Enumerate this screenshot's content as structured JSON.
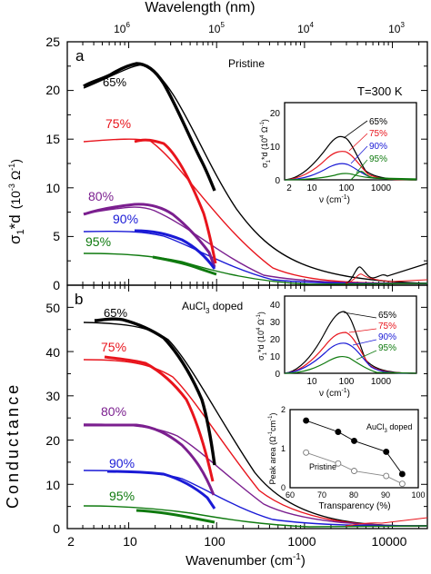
{
  "chart_data": [
    {
      "panel": "a",
      "type": "line",
      "label": "a",
      "annotation": "Pristine",
      "temperature": "T=300 K",
      "ylim": [
        0,
        25
      ],
      "xscale": "log",
      "xlim": [
        2,
        25000
      ],
      "yticks": [
        0,
        5,
        10,
        15,
        20,
        25
      ],
      "top_axis": {
        "label": "Wavelength (nm)",
        "ticks": [
          "10^6",
          "10^5",
          "10^4",
          "10^3"
        ]
      },
      "series": [
        {
          "name": "65%",
          "color": "#000000",
          "dc_conductivity": 21.5,
          "data_points": [
            [
              3,
              21.2
            ],
            [
              4,
              21.8
            ],
            [
              6,
              22.1
            ],
            [
              8,
              22.5
            ],
            [
              10,
              22.3
            ],
            [
              15,
              21.8
            ],
            [
              20,
              20.8
            ],
            [
              30,
              17.5
            ],
            [
              50,
              12.5
            ],
            [
              70,
              9.8
            ],
            [
              90,
              7.5
            ]
          ]
        },
        {
          "name": "75%",
          "color": "#e8141c",
          "dc_conductivity": 14.6,
          "data_points": [
            [
              8,
              14.8
            ],
            [
              10,
              14.9
            ],
            [
              15,
              14.4
            ],
            [
              20,
              13.6
            ],
            [
              30,
              11.5
            ],
            [
              50,
              8.0
            ],
            [
              70,
              5.5
            ],
            [
              90,
              3.2
            ]
          ]
        },
        {
          "name": "80%",
          "color": "#7b1f8f",
          "dc_conductivity": 7.3,
          "data_points": [
            [
              3,
              7.3
            ],
            [
              5,
              7.7
            ],
            [
              8,
              8.0
            ],
            [
              10,
              8.1
            ],
            [
              15,
              8.0
            ],
            [
              20,
              7.6
            ],
            [
              30,
              6.5
            ],
            [
              50,
              4.5
            ],
            [
              70,
              3.2
            ],
            [
              90,
              2.5
            ]
          ]
        },
        {
          "name": "90%",
          "color": "#1a1ad6",
          "dc_conductivity": 5.5,
          "data_points": [
            [
              8,
              5.5
            ],
            [
              10,
              5.5
            ],
            [
              20,
              5.2
            ],
            [
              30,
              4.6
            ],
            [
              50,
              3.4
            ],
            [
              70,
              2.4
            ],
            [
              90,
              1.7
            ]
          ]
        },
        {
          "name": "95%",
          "color": "#0f7a0f",
          "dc_conductivity": 3.2,
          "data_points": [
            [
              10,
              2.9
            ],
            [
              20,
              2.2
            ],
            [
              30,
              1.8
            ],
            [
              50,
              1.3
            ],
            [
              70,
              0.9
            ],
            [
              90,
              0.6
            ]
          ]
        }
      ],
      "inset": {
        "ylabel": "σ1*d (10^4 Ω^-1)",
        "xlabel": "ν (cm^-1)",
        "ylim": [
          0,
          23
        ],
        "yticks": [
          0,
          10,
          20
        ],
        "xticks": [
          2,
          10,
          100,
          1000
        ],
        "legend": [
          "65%",
          "75%",
          "90%",
          "95%"
        ]
      }
    },
    {
      "panel": "b",
      "type": "line",
      "label": "b",
      "annotation": "AuCl3 doped",
      "ylim": [
        0,
        55
      ],
      "xscale": "log",
      "xlim": [
        2,
        25000
      ],
      "yticks": [
        0,
        10,
        20,
        30,
        40,
        50
      ],
      "series": [
        {
          "name": "65%",
          "color": "#000000",
          "dc_conductivity": 50,
          "data_points": [
            [
              5,
              50.5
            ],
            [
              8,
              50.2
            ],
            [
              10,
              49.5
            ],
            [
              15,
              47.5
            ],
            [
              20,
              45.5
            ],
            [
              30,
              40.0
            ],
            [
              50,
              30.0
            ],
            [
              70,
              22.0
            ],
            [
              90,
              16.0
            ]
          ]
        },
        {
          "name": "75%",
          "color": "#e8141c",
          "dc_conductivity": 41,
          "data_points": [
            [
              6,
              41.5
            ],
            [
              10,
              40.5
            ],
            [
              15,
              39.0
            ],
            [
              20,
              37.0
            ],
            [
              30,
              32.0
            ],
            [
              50,
              24.0
            ],
            [
              70,
              18.5
            ],
            [
              90,
              13.0
            ]
          ]
        },
        {
          "name": "80%",
          "color": "#7b1f8f",
          "dc_conductivity": 25,
          "data_points": [
            [
              3,
              24.8
            ],
            [
              5,
              25.0
            ],
            [
              10,
              25.0
            ],
            [
              15,
              24.5
            ],
            [
              20,
              23.8
            ],
            [
              30,
              21.5
            ],
            [
              50,
              16.0
            ],
            [
              70,
              11.5
            ],
            [
              90,
              8.0
            ]
          ]
        },
        {
          "name": "90%",
          "color": "#1a1ad6",
          "dc_conductivity": 14,
          "data_points": [
            [
              6,
              14.2
            ],
            [
              10,
              13.8
            ],
            [
              15,
              13.0
            ],
            [
              20,
              12.0
            ],
            [
              30,
              10.5
            ],
            [
              50,
              7.5
            ],
            [
              70,
              5.0
            ],
            [
              90,
              3.5
            ]
          ]
        },
        {
          "name": "95%",
          "color": "#0f7a0f",
          "dc_conductivity": 5.3,
          "data_points": [
            [
              10,
              4.8
            ],
            [
              20,
              4.0
            ],
            [
              30,
              3.3
            ],
            [
              50,
              2.2
            ],
            [
              70,
              1.5
            ],
            [
              90,
              1.0
            ]
          ]
        }
      ],
      "inset_top": {
        "ylabel": "σ1*d (10^4 Ω^-1)",
        "xlabel": "ν (cm^-1)",
        "ylim": [
          0,
          45
        ],
        "yticks": [
          0,
          10,
          20,
          30,
          40
        ],
        "xticks": [
          10,
          100,
          1000
        ],
        "legend": [
          "65%",
          "75%",
          "90%",
          "95%"
        ]
      },
      "inset_bottom": {
        "type": "scatter",
        "xlabel": "Transparency (%)",
        "ylabel": "Peak area (Ω^-1cm^-1)",
        "xlim": [
          60,
          100
        ],
        "ylim": [
          0,
          2
        ],
        "xticks": [
          60,
          70,
          80,
          90,
          100
        ],
        "yticks": [
          0,
          1,
          2
        ],
        "series": [
          {
            "name": "AuCl3 doped",
            "marker": "filled",
            "x": [
              65,
              75,
              80,
              90,
              95
            ],
            "y": [
              1.72,
              1.43,
              1.2,
              0.92,
              0.35
            ]
          },
          {
            "name": "Pristine",
            "marker": "open",
            "x": [
              65,
              75,
              80,
              90,
              95
            ],
            "y": [
              0.9,
              0.62,
              0.43,
              0.3,
              0.1
            ]
          }
        ]
      }
    }
  ],
  "labels": {
    "xlabel": "Wavenumber (cm",
    "xlabel_sup": "-1",
    "xlabel_end": ")",
    "ylabel_conductance": "Conductance",
    "ylabel_main_a": "σ",
    "ylabel_sub_a": "1",
    "ylabel_rest_a": "*d",
    "ylabel_units": "(10",
    "ylabel_units_sup": "-3",
    "ylabel_units_rest": " Ω",
    "ylabel_units_sup2": "-1",
    "ylabel_units_end": ")",
    "wavelength": "Wavelength (nm)",
    "panel_a": "a",
    "panel_b": "b",
    "pristine": "Pristine",
    "temperature": "T=300 K",
    "aucl3": "AuCl",
    "aucl3_sub": "3",
    "aucl3_rest": " doped",
    "x_ticks": [
      "2",
      "10",
      "100",
      "1000",
      "10000"
    ],
    "a_y_ticks": [
      "0",
      "5",
      "10",
      "15",
      "20",
      "25"
    ],
    "b_y_ticks": [
      "0",
      "10",
      "20",
      "30",
      "40",
      "50"
    ],
    "top_ticks_base": [
      "10",
      "10",
      "10",
      "10"
    ],
    "top_ticks_exp": [
      "6",
      "5",
      "4",
      "3"
    ],
    "series_labels": [
      "65%",
      "75%",
      "80%",
      "90%",
      "95%"
    ],
    "inset_a_ylabel": "σ",
    "inset_a_ylabel_sub": "1",
    "inset_a_ylabel_rest": "*d (10",
    "inset_a_ylabel_sup": "4",
    "inset_a_ylabel_end": " Ω",
    "inset_a_ylabel_sup2": "-1",
    "inset_a_ylabel_close": ")",
    "inset_xlabel": "ν (cm",
    "inset_xlabel_sup": "-1",
    "inset_xlabel_end": ")",
    "inset_a_x_ticks": [
      "2",
      "10",
      "100",
      "1000"
    ],
    "inset_a_y_ticks": [
      "0",
      "10",
      "20"
    ],
    "inset_b_x_ticks": [
      "10",
      "100",
      "1000"
    ],
    "inset_b_y_ticks": [
      "0",
      "10",
      "20",
      "30",
      "40"
    ],
    "inset_legend": [
      "65%",
      "75%",
      "90%",
      "95%"
    ],
    "peak_xlabel": "Transparency (%)",
    "peak_ylabel": "Peak area (Ω",
    "peak_ylabel_sup": "-1",
    "peak_ylabel_mid": "cm",
    "peak_ylabel_sup2": "-1",
    "peak_ylabel_end": ")",
    "peak_x_ticks": [
      "60",
      "70",
      "80",
      "90",
      "100"
    ],
    "peak_y_ticks": [
      "0",
      "1",
      "2"
    ],
    "peak_label_doped": "AuCl",
    "peak_label_doped_sub": "3",
    "peak_label_doped_rest": " doped",
    "peak_label_pristine": "Pristine"
  },
  "colors": {
    "c65": "#000000",
    "c75": "#e8141c",
    "c80": "#7b1f8f",
    "c90": "#1a1ad6",
    "c95": "#0f7a0f"
  }
}
